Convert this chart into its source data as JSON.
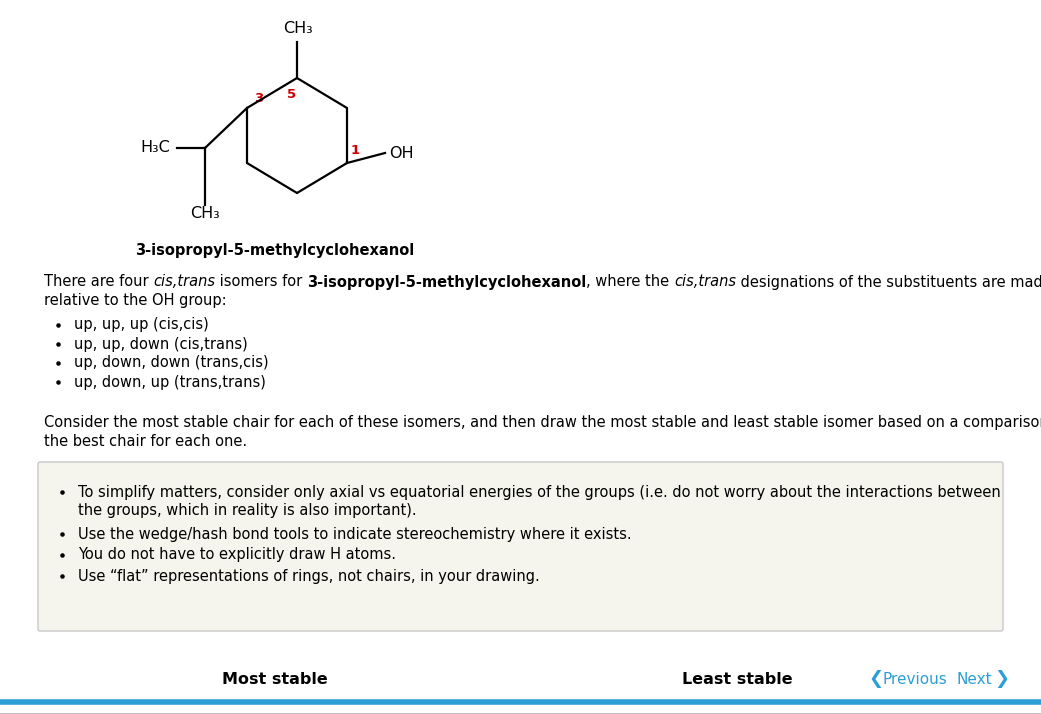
{
  "bg_color": "#ffffff",
  "molecule_title": "3-isopropyl-5-methylcyclohexanol",
  "bullets1": [
    "up, up, up (cis,cis)",
    "up, up, down (cis,trans)",
    "up, down, down (trans,cis)",
    "up, down, up (trans,trans)"
  ],
  "para2_line1": "Consider the most stable chair for each of these isomers, and then draw the most stable and least stable isomer based on a comparison of",
  "para2_line2": "the best chair for each one.",
  "box_bullet1_line1": "To simplify matters, consider only axial vs equatorial energies of the groups (i.e. do not worry about the interactions between",
  "box_bullet1_line2": "the groups, which in reality is also important).",
  "box_bullet2": "Use the wedge/hash bond tools to indicate stereochemistry where it exists.",
  "box_bullet3": "You do not have to explicitly draw H atoms.",
  "box_bullet4": "Use “flat” representations of rings, not chairs, in your drawing.",
  "footer_left": "Most stable",
  "footer_mid": "Least stable",
  "footer_prev": "Previous",
  "footer_next": "Next",
  "box_bg": "#f5f5ee",
  "box_border": "#c8c8c8",
  "nav_color": "#2b9fd4",
  "red_color": "#cc0000",
  "line_color": "#2b9fd4",
  "sep_color": "#dddddd",
  "font_size_body": 10.5,
  "font_size_mol": 11.5,
  "font_size_mol_title": 10.5,
  "font_size_footer": 11.5
}
